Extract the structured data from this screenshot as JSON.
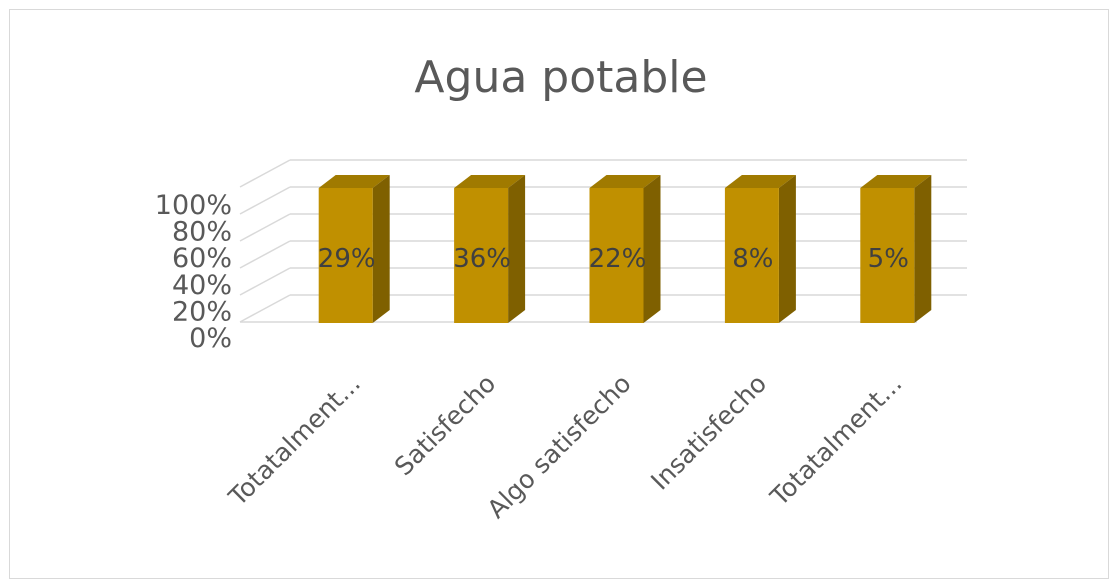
{
  "chart_data": {
    "type": "bar",
    "title": "Agua potable",
    "categories": [
      "Totatalment...",
      "Satisfecho",
      "Algo satisfecho",
      "Insatisfecho",
      "Totatalment..."
    ],
    "values": [
      29,
      36,
      22,
      8,
      5
    ],
    "data_labels": [
      "29%",
      "36%",
      "22%",
      "8%",
      "5%"
    ],
    "y_ticks": [
      "100%",
      "80%",
      "60%",
      "40%",
      "20%",
      "0%"
    ],
    "grid": true,
    "legend": "none",
    "bar_style": "3d",
    "colors": {
      "bar_front": "#c09000",
      "bar_side": "#7f6000",
      "bar_top": "#a07a00",
      "grid": "#d9d9d9",
      "text": "#595959"
    }
  }
}
